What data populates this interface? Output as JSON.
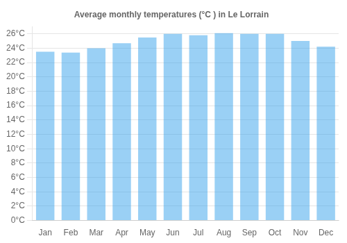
{
  "chart_data": {
    "type": "bar",
    "title": "Average monthly temperatures (°C ) in Le Lorrain",
    "categories": [
      "Jan",
      "Feb",
      "Mar",
      "Apr",
      "May",
      "Jun",
      "Jul",
      "Aug",
      "Sep",
      "Oct",
      "Nov",
      "Dec"
    ],
    "values": [
      23.5,
      23.4,
      24.0,
      24.7,
      25.5,
      26.0,
      25.8,
      26.1,
      26.0,
      26.0,
      25.0,
      24.2
    ],
    "ylim": [
      0,
      27
    ],
    "yticks": [
      {
        "value": 0,
        "label": "0°C"
      },
      {
        "value": 2,
        "label": "2°C"
      },
      {
        "value": 4,
        "label": "4°C"
      },
      {
        "value": 6,
        "label": "6°C"
      },
      {
        "value": 8,
        "label": "8°C"
      },
      {
        "value": 10,
        "label": "10°C"
      },
      {
        "value": 12,
        "label": "12°C"
      },
      {
        "value": 14,
        "label": "14°C"
      },
      {
        "value": 16,
        "label": "16°C"
      },
      {
        "value": 18,
        "label": "18°C"
      },
      {
        "value": 20,
        "label": "20°C"
      },
      {
        "value": 22,
        "label": "22°C"
      },
      {
        "value": 24,
        "label": "24°C"
      },
      {
        "value": 26,
        "label": "26°C"
      }
    ],
    "grid": true
  }
}
